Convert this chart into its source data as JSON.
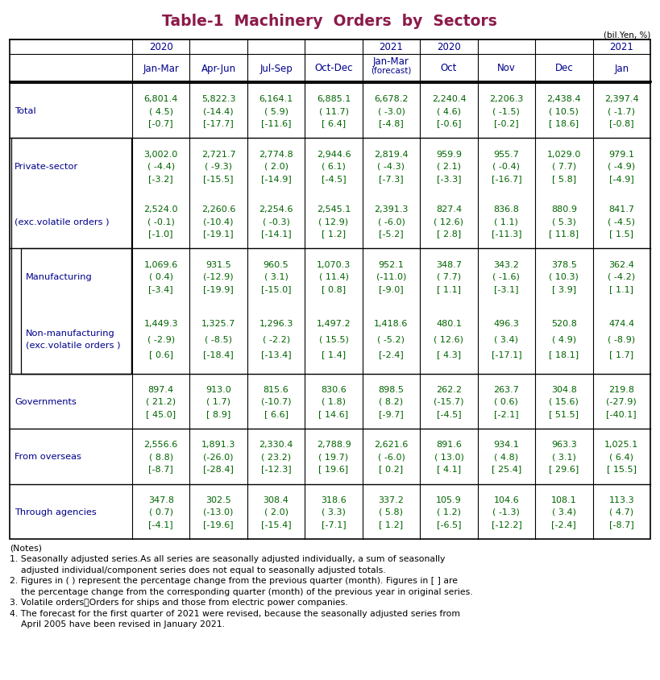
{
  "title": "Table-1  Machinery  Orders  by  Sectors",
  "title_color": "#8B1A4A",
  "unit_label": "(bil.Yen, %)",
  "header_row1": [
    "2020",
    "",
    "",
    "",
    "2021",
    "2020",
    "",
    "",
    "2021"
  ],
  "header_row2": [
    "Jan-Mar",
    "Apr-Jun",
    "Jul-Sep",
    "Oct-Dec",
    "Jan-Mar\n(forecast)",
    "Oct",
    "Nov",
    "Dec",
    "Jan"
  ],
  "col_header_color": "#00008B",
  "data_color": "#006400",
  "row_label_color": "#00008B",
  "rows": [
    {
      "label": "Total",
      "indent": 0,
      "inner_box": false,
      "section_break_before": false,
      "data": [
        [
          "6,801.4",
          "( 4.5)",
          "[-0.7]"
        ],
        [
          "5,822.3",
          "(-14.4)",
          "[-17.7]"
        ],
        [
          "6,164.1",
          "( 5.9)",
          "[-11.6]"
        ],
        [
          "6,885.1",
          "( 11.7)",
          "[ 6.4]"
        ],
        [
          "6,678.2",
          "( -3.0)",
          "[-4.8]"
        ],
        [
          "2,240.4",
          "( 4.6)",
          "[-0.6]"
        ],
        [
          "2,206.3",
          "( -1.5)",
          "[-0.2]"
        ],
        [
          "2,438.4",
          "( 10.5)",
          "[ 18.6]"
        ],
        [
          "2,397.4",
          "( -1.7)",
          "[-0.8]"
        ]
      ]
    },
    {
      "label": "Private-sector",
      "indent": 0,
      "inner_box": false,
      "section_break_before": true,
      "data": [
        [
          "3,002.0",
          "( -4.4)",
          "[-3.2]"
        ],
        [
          "2,721.7",
          "( -9.3)",
          "[-15.5]"
        ],
        [
          "2,774.8",
          "( 2.0)",
          "[-14.9]"
        ],
        [
          "2,944.6",
          "( 6.1)",
          "[-4.5]"
        ],
        [
          "2,819.4",
          "( -4.3)",
          "[-7.3]"
        ],
        [
          "959.9",
          "( 2.1)",
          "[-3.3]"
        ],
        [
          "955.7",
          "( -0.4)",
          "[-16.7]"
        ],
        [
          "1,029.0",
          "( 7.7)",
          "[ 5.8]"
        ],
        [
          "979.1",
          "( -4.9)",
          "[-4.9]"
        ]
      ]
    },
    {
      "label": "(exc.volatile orders )",
      "indent": 0,
      "inner_box": false,
      "section_break_before": false,
      "data": [
        [
          "2,524.0",
          "( -0.1)",
          "[-1.0]"
        ],
        [
          "2,260.6",
          "(-10.4)",
          "[-19.1]"
        ],
        [
          "2,254.6",
          "( -0.3)",
          "[-14.1]"
        ],
        [
          "2,545.1",
          "( 12.9)",
          "[ 1.2]"
        ],
        [
          "2,391.3",
          "( -6.0)",
          "[-5.2]"
        ],
        [
          "827.4",
          "( 12.6)",
          "[ 2.8]"
        ],
        [
          "836.8",
          "( 1.1)",
          "[-11.3]"
        ],
        [
          "880.9",
          "( 5.3)",
          "[ 11.8]"
        ],
        [
          "841.7",
          "( -4.5)",
          "[ 1.5]"
        ]
      ]
    },
    {
      "label": "Manufacturing",
      "indent": 1,
      "inner_box": true,
      "section_break_before": true,
      "data": [
        [
          "1,069.6",
          "( 0.4)",
          "[-3.4]"
        ],
        [
          "931.5",
          "(-12.9)",
          "[-19.9]"
        ],
        [
          "960.5",
          "( 3.1)",
          "[-15.0]"
        ],
        [
          "1,070.3",
          "( 11.4)",
          "[ 0.8]"
        ],
        [
          "952.1",
          "(-11.0)",
          "[-9.0]"
        ],
        [
          "348.7",
          "( 7.7)",
          "[ 1.1]"
        ],
        [
          "343.2",
          "( -1.6)",
          "[-3.1]"
        ],
        [
          "378.5",
          "( 10.3)",
          "[ 3.9]"
        ],
        [
          "362.4",
          "( -4.2)",
          "[ 1.1]"
        ]
      ]
    },
    {
      "label": "Non-manufacturing\n(exc.volatile orders )",
      "indent": 1,
      "inner_box": true,
      "section_break_before": false,
      "data": [
        [
          "1,449.3",
          "( -2.9)",
          "[ 0.6]"
        ],
        [
          "1,325.7",
          "( -8.5)",
          "[-18.4]"
        ],
        [
          "1,296.3",
          "( -2.2)",
          "[-13.4]"
        ],
        [
          "1,497.2",
          "( 15.5)",
          "[ 1.4]"
        ],
        [
          "1,418.6",
          "( -5.2)",
          "[-2.4]"
        ],
        [
          "480.1",
          "( 12.6)",
          "[ 4.3]"
        ],
        [
          "496.3",
          "( 3.4)",
          "[-17.1]"
        ],
        [
          "520.8",
          "( 4.9)",
          "[ 18.1]"
        ],
        [
          "474.4",
          "( -8.9)",
          "[ 1.7]"
        ]
      ]
    },
    {
      "label": "Governments",
      "indent": 0,
      "inner_box": false,
      "section_break_before": true,
      "data": [
        [
          "897.4",
          "( 21.2)",
          "[ 45.0]"
        ],
        [
          "913.0",
          "( 1.7)",
          "[ 8.9]"
        ],
        [
          "815.6",
          "(-10.7)",
          "[ 6.6]"
        ],
        [
          "830.6",
          "( 1.8)",
          "[ 14.6]"
        ],
        [
          "898.5",
          "( 8.2)",
          "[-9.7]"
        ],
        [
          "262.2",
          "(-15.7)",
          "[-4.5]"
        ],
        [
          "263.7",
          "( 0.6)",
          "[-2.1]"
        ],
        [
          "304.8",
          "( 15.6)",
          "[ 51.5]"
        ],
        [
          "219.8",
          "(-27.9)",
          "[-40.1]"
        ]
      ]
    },
    {
      "label": "From overseas",
      "indent": 0,
      "inner_box": false,
      "section_break_before": true,
      "data": [
        [
          "2,556.6",
          "( 8.8)",
          "[-8.7]"
        ],
        [
          "1,891.3",
          "(-26.0)",
          "[-28.4]"
        ],
        [
          "2,330.4",
          "( 23.2)",
          "[-12.3]"
        ],
        [
          "2,788.9",
          "( 19.7)",
          "[ 19.6]"
        ],
        [
          "2,621.6",
          "( -6.0)",
          "[ 0.2]"
        ],
        [
          "891.6",
          "( 13.0)",
          "[ 4.1]"
        ],
        [
          "934.1",
          "( 4.8)",
          "[ 25.4]"
        ],
        [
          "963.3",
          "( 3.1)",
          "[ 29.6]"
        ],
        [
          "1,025.1",
          "( 6.4)",
          "[ 15.5]"
        ]
      ]
    },
    {
      "label": "Through agencies",
      "indent": 0,
      "inner_box": false,
      "section_break_before": true,
      "data": [
        [
          "347.8",
          "( 0.7)",
          "[-4.1]"
        ],
        [
          "302.5",
          "(-13.0)",
          "[-19.6]"
        ],
        [
          "308.4",
          "( 2.0)",
          "[-15.4]"
        ],
        [
          "318.6",
          "( 3.3)",
          "[-7.1]"
        ],
        [
          "337.2",
          "( 5.8)",
          "[ 1.2]"
        ],
        [
          "105.9",
          "( 1.2)",
          "[-6.5]"
        ],
        [
          "104.6",
          "( -1.3)",
          "[-12.2]"
        ],
        [
          "108.1",
          "( 3.4)",
          "[-2.4]"
        ],
        [
          "113.3",
          "( 4.7)",
          "[-8.7]"
        ]
      ]
    }
  ],
  "notes": [
    "(Notes)",
    "1. Seasonally adjusted series.As all series are seasonally adjusted individually, a sum of seasonally",
    "    adjusted individual/component series does not equal to seasonally adjusted totals.",
    "2. Figures in ( ) represent the percentage change from the previous quarter (month). Figures in [ ] are",
    "    the percentage change from the corresponding quarter (month) of the previous year in original series.",
    "3. Volatile orders：Orders for ships and those from electric power companies.",
    "4. The forecast for the first quarter of 2021 were revised, because the seasonally adjusted series from",
    "    April 2005 have been revised in January 2021."
  ]
}
